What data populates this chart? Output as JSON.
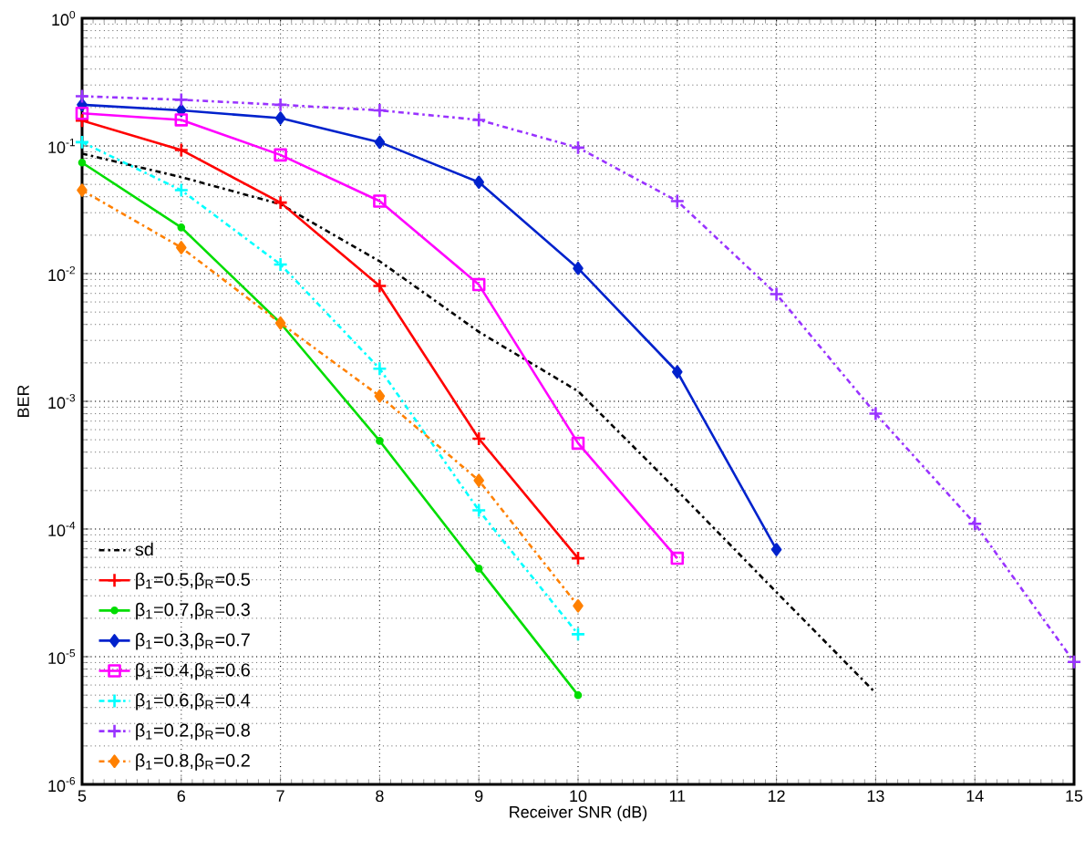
{
  "chart_data": {
    "type": "line",
    "xlabel": "Receiver SNR (dB)",
    "ylabel": "BER",
    "log": "y",
    "grid": true,
    "legend": "bottom left",
    "xlim": [
      5,
      15
    ],
    "xticks": [
      5,
      6,
      7,
      8,
      9,
      10,
      11,
      12,
      13,
      14,
      15
    ],
    "ylim": [
      1e-06,
      1
    ],
    "yticks": [
      {
        "value": 1e-06,
        "label": "10$^{-6}$"
      },
      {
        "value": 1e-05,
        "label": "10$^{-5}$"
      },
      {
        "value": 0.0001,
        "label": "10$^{-4}$"
      },
      {
        "value": 0.001,
        "label": "10$^{-3}$"
      },
      {
        "value": 0.01,
        "label": "10$^{-2}$"
      },
      {
        "value": 0.1,
        "label": "10$^{-1}$"
      },
      {
        "value": 1,
        "label": "10$^{0}$"
      }
    ],
    "series": [
      {
        "name": "sd",
        "color": "#000000",
        "marker": "none",
        "line_style": "dashed",
        "x": [
          5,
          6,
          7,
          8,
          9,
          10,
          11,
          12,
          13
        ],
        "values": [
          0.087,
          0.057,
          0.035,
          0.0125,
          0.0035,
          0.0012,
          0.0002,
          3.2e-05,
          5.2e-06
        ]
      },
      {
        "name": "β$_{1}$=0.5,β$_{R}$=0.5",
        "color": "#ff0000",
        "marker": "cross",
        "line_style": "solid",
        "x": [
          5,
          6,
          7,
          8,
          9,
          10
        ],
        "values": [
          0.158,
          0.093,
          0.036,
          0.008,
          0.00051,
          5.9e-05
        ]
      },
      {
        "name": "β$_{1}$=0.7,β$_{R}$=0.3",
        "color": "#00dd00",
        "marker": "circle",
        "line_style": "solid",
        "x": [
          5,
          6,
          7,
          8,
          9,
          10
        ],
        "values": [
          0.074,
          0.023,
          0.0041,
          0.00049,
          4.9e-05,
          5e-06
        ]
      },
      {
        "name": "β$_{1}$=0.3,β$_{R}$=0.7",
        "color": "#0022cc",
        "marker": "diamond",
        "line_style": "solid",
        "x": [
          5,
          6,
          7,
          8,
          9,
          10,
          11,
          12
        ],
        "values": [
          0.21,
          0.19,
          0.165,
          0.107,
          0.052,
          0.011,
          0.0017,
          6.9e-05
        ]
      },
      {
        "name": "β$_{1}$=0.4,β$_{R}$=0.6",
        "color": "#ff00ff",
        "marker": "square",
        "line_style": "solid",
        "x": [
          5,
          6,
          7,
          8,
          9,
          10,
          11
        ],
        "values": [
          0.18,
          0.16,
          0.085,
          0.037,
          0.0082,
          0.00047,
          5.9e-05
        ]
      },
      {
        "name": "β$_{1}$=0.6,β$_{R}$=0.4",
        "color": "#00ffff",
        "marker": "cross",
        "line_style": "dashed",
        "x": [
          5,
          6,
          7,
          8,
          9,
          10
        ],
        "values": [
          0.107,
          0.045,
          0.0118,
          0.0018,
          0.00014,
          1.5e-05
        ]
      },
      {
        "name": "β$_{1}$=0.2,β$_{R}$=0.8",
        "color": "#9933ff",
        "marker": "cross",
        "line_style": "dashed",
        "x": [
          5,
          6,
          7,
          8,
          9,
          10,
          11,
          12,
          13,
          14,
          15
        ],
        "values": [
          0.245,
          0.23,
          0.21,
          0.19,
          0.16,
          0.097,
          0.037,
          0.0069,
          0.0008,
          0.00011,
          9.1e-06
        ]
      },
      {
        "name": "β$_{1}$=0.8,β$_{R}$=0.2",
        "color": "#ff8000",
        "marker": "diamond",
        "line_style": "dashed",
        "x": [
          5,
          6,
          7,
          8,
          9,
          10
        ],
        "values": [
          0.045,
          0.016,
          0.0041,
          0.0011,
          0.00024,
          2.5e-05
        ]
      }
    ]
  }
}
